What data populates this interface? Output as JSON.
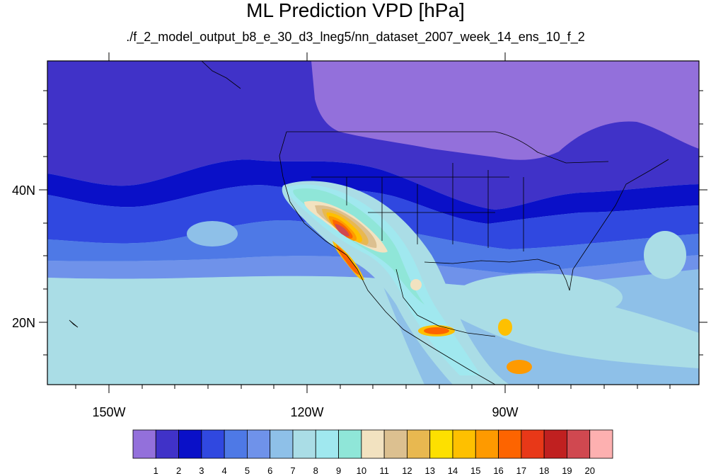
{
  "title": "ML Prediction VPD [hPa]",
  "subtitle": "./f_2_model_output_b8_e_30_d3_lneg5/nn_dataset_2007_week_14_ens_10_f_2",
  "axes": {
    "x_ticks": [
      "150W",
      "120W",
      "90W"
    ],
    "y_ticks": [
      "40N",
      "20N"
    ]
  },
  "colorbar": {
    "colors": [
      "#9370db",
      "#4032c8",
      "#0a10c8",
      "#3048e0",
      "#4e79e6",
      "#6f92ea",
      "#8ec0e8",
      "#aadde6",
      "#a0e8ef",
      "#8fe6d8",
      "#f2e2c0",
      "#dcc090",
      "#e8b850",
      "#fde000",
      "#fec000",
      "#fe9a00",
      "#fd6400",
      "#e83818",
      "#c02020",
      "#d04850",
      "#fdb0b0"
    ],
    "labels": [
      "1",
      "2",
      "3",
      "4",
      "5",
      "6",
      "7",
      "8",
      "9",
      "10",
      "11",
      "12",
      "13",
      "14",
      "15",
      "16",
      "17",
      "18",
      "19",
      "20"
    ]
  },
  "legend_colors": {
    "boundary": "#000000"
  }
}
